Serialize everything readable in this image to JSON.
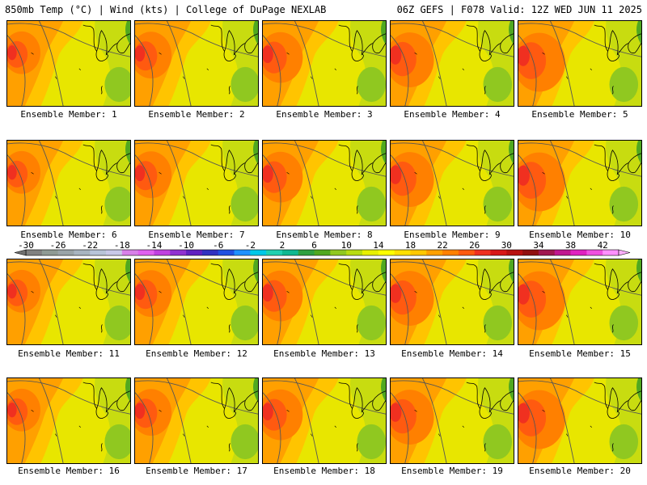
{
  "header": {
    "left": "850mb Temp (°C) | Wind (kts) | College of DuPage NEXLAB",
    "right": "06Z GEFS | F078 Valid: 12Z WED JUN 11 2025"
  },
  "members": [
    "Ensemble Member: 1",
    "Ensemble Member: 2",
    "Ensemble Member: 3",
    "Ensemble Member: 4",
    "Ensemble Member: 5",
    "Ensemble Member: 6",
    "Ensemble Member: 7",
    "Ensemble Member: 8",
    "Ensemble Member: 9",
    "Ensemble Member: 10",
    "Ensemble Member: 11",
    "Ensemble Member: 12",
    "Ensemble Member: 13",
    "Ensemble Member: 14",
    "Ensemble Member: 15",
    "Ensemble Member: 16",
    "Ensemble Member: 17",
    "Ensemble Member: 18",
    "Ensemble Member: 19",
    "Ensemble Member: 20"
  ],
  "colorbar": {
    "labels": [
      "-30",
      "-26",
      "-22",
      "-18",
      "-14",
      "-10",
      "-6",
      "-2",
      "2",
      "6",
      "10",
      "14",
      "18",
      "22",
      "26",
      "30",
      "34",
      "38",
      "42"
    ],
    "colors": [
      "#808080",
      "#8f9a94",
      "#9aa4a8",
      "#a8b4c0",
      "#b8c4d8",
      "#c8c8e8",
      "#d880e8",
      "#e060f0",
      "#c040e0",
      "#9030d0",
      "#6020c0",
      "#3030c0",
      "#2050e0",
      "#1e90ff",
      "#00c8e8",
      "#20d0b0",
      "#10b890",
      "#30a040",
      "#50a820",
      "#90c820",
      "#b8dc10",
      "#e8f000",
      "#ffff00",
      "#ffe000",
      "#ffc800",
      "#ffa000",
      "#ff8000",
      "#ff5a10",
      "#f03020",
      "#d81818",
      "#b81010",
      "#901010",
      "#a01850",
      "#c01890",
      "#e020c0",
      "#f050e0",
      "#ff90ff"
    ]
  }
}
